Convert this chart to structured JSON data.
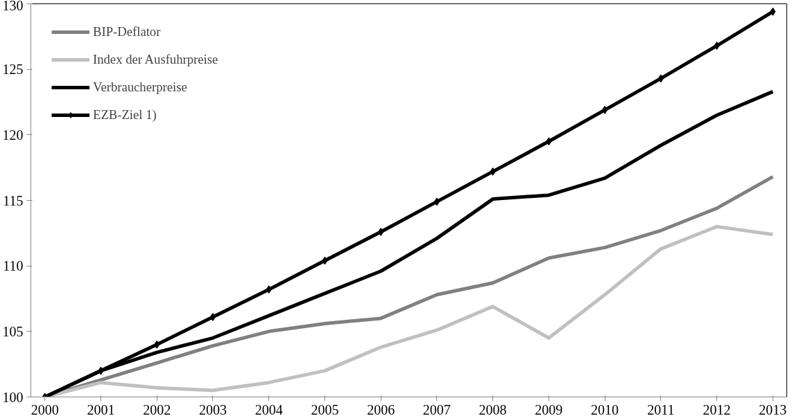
{
  "chart_data": {
    "type": "line",
    "x": [
      2000,
      2001,
      2002,
      2003,
      2004,
      2005,
      2006,
      2007,
      2008,
      2009,
      2010,
      2011,
      2012,
      2013
    ],
    "series": [
      {
        "name": "BIP-Deflator",
        "color": "#808080",
        "values": [
          100,
          101.3,
          102.6,
          103.9,
          105.0,
          105.6,
          106.0,
          107.8,
          108.7,
          110.6,
          111.4,
          112.7,
          114.4,
          116.8
        ]
      },
      {
        "name": "Index der Ausfuhrpreise",
        "color": "#c0c0c0",
        "values": [
          100,
          101.1,
          100.7,
          100.5,
          101.1,
          102.0,
          103.8,
          105.1,
          106.9,
          104.5,
          107.8,
          111.3,
          113.0,
          112.4
        ]
      },
      {
        "name": "Verbraucherpreise",
        "color": "#000000",
        "values": [
          100,
          102.0,
          103.4,
          104.5,
          106.2,
          107.9,
          109.6,
          112.1,
          115.1,
          115.4,
          116.7,
          119.2,
          121.5,
          123.3
        ]
      },
      {
        "name": "EZB-Ziel 1)",
        "color": "#000000",
        "marker": "diamond",
        "values": [
          100,
          102.0,
          104.0,
          106.1,
          108.2,
          110.4,
          112.6,
          114.9,
          117.2,
          119.5,
          121.9,
          124.3,
          126.8,
          129.4
        ]
      }
    ],
    "xlim": [
      1999.75,
      2013.25
    ],
    "xticks": [
      2000,
      2001,
      2002,
      2003,
      2004,
      2005,
      2006,
      2007,
      2008,
      2009,
      2010,
      2011,
      2012,
      2013
    ],
    "ylim": [
      100,
      130
    ],
    "yticks": [
      100,
      105,
      110,
      115,
      120,
      125,
      130
    ],
    "grid": false,
    "legend": "top left",
    "line_style": "solid"
  }
}
